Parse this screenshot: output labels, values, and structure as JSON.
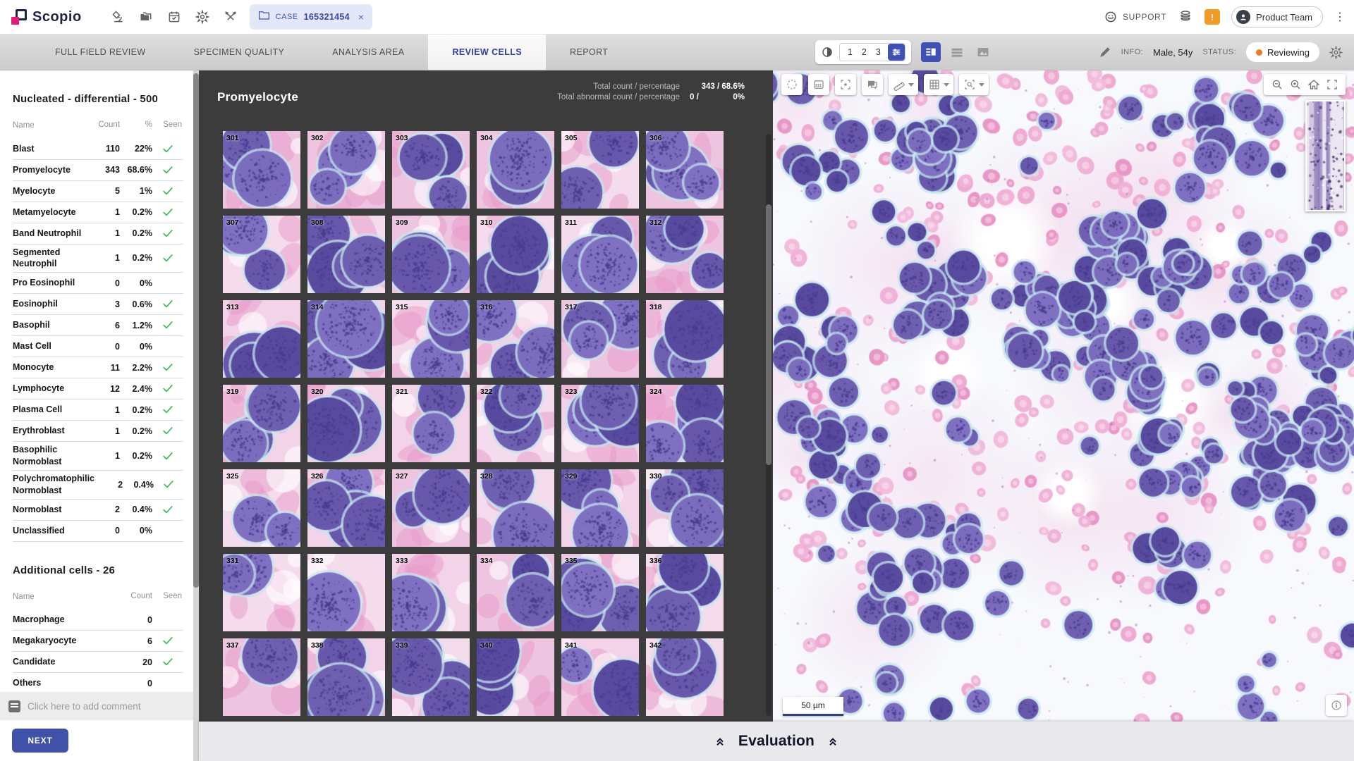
{
  "topbar": {
    "brand": "Scopio",
    "action_icons": [
      "microscope",
      "folders",
      "calendar",
      "settings",
      "tools"
    ],
    "case_tab": {
      "label": "CASE",
      "number": "165321454",
      "close": "×"
    },
    "support_label": "SUPPORT",
    "right_icons": [
      "headset",
      "database",
      "battery-alert"
    ],
    "user_pill": "Product Team"
  },
  "tabs": [
    {
      "label": "FULL FIELD REVIEW",
      "active": false
    },
    {
      "label": "SPECIMEN QUALITY",
      "active": false
    },
    {
      "label": "ANALYSIS AREA",
      "active": false
    },
    {
      "label": "REVIEW CELLS",
      "active": true
    },
    {
      "label": "REPORT",
      "active": false
    }
  ],
  "controls": {
    "pages": [
      "1",
      "2",
      "3"
    ],
    "view_modes": [
      "split-view",
      "list-view",
      "image-view"
    ],
    "active_view": "split-view",
    "info_label": "INFO:",
    "info_value": "Male, 54y",
    "status_label": "STATUS:",
    "status_value": "Reviewing",
    "status_color": "#f57922"
  },
  "sidebar": {
    "nucleated": {
      "title": "Nucleated - differential - 500",
      "columns": [
        "Name",
        "Count",
        "%",
        "Seen"
      ],
      "rows": [
        {
          "name": "Blast",
          "count": "110",
          "pct": "22%",
          "seen": true
        },
        {
          "name": "Promyelocyte",
          "count": "343",
          "pct": "68.6%",
          "seen": true
        },
        {
          "name": "Myelocyte",
          "count": "5",
          "pct": "1%",
          "seen": true
        },
        {
          "name": "Metamyelocyte",
          "count": "1",
          "pct": "0.2%",
          "seen": true
        },
        {
          "name": "Band Neutrophil",
          "count": "1",
          "pct": "0.2%",
          "seen": true
        },
        {
          "name": "Segmented Neutrophil",
          "count": "1",
          "pct": "0.2%",
          "seen": true
        },
        {
          "name": "Pro Eosinophil",
          "count": "0",
          "pct": "0%",
          "seen": false
        },
        {
          "name": "Eosinophil",
          "count": "3",
          "pct": "0.6%",
          "seen": true
        },
        {
          "name": "Basophil",
          "count": "6",
          "pct": "1.2%",
          "seen": true
        },
        {
          "name": "Mast Cell",
          "count": "0",
          "pct": "0%",
          "seen": false
        },
        {
          "name": "Monocyte",
          "count": "11",
          "pct": "2.2%",
          "seen": true
        },
        {
          "name": "Lymphocyte",
          "count": "12",
          "pct": "2.4%",
          "seen": true
        },
        {
          "name": "Plasma Cell",
          "count": "1",
          "pct": "0.2%",
          "seen": true
        },
        {
          "name": "Erythroblast",
          "count": "1",
          "pct": "0.2%",
          "seen": true
        },
        {
          "name": "Basophilic Normoblast",
          "count": "1",
          "pct": "0.2%",
          "seen": true
        },
        {
          "name": "Polychromatophilic Normoblast",
          "count": "2",
          "pct": "0.4%",
          "seen": true
        },
        {
          "name": "Normoblast",
          "count": "2",
          "pct": "0.4%",
          "seen": true
        },
        {
          "name": "Unclassified",
          "count": "0",
          "pct": "0%",
          "seen": false
        }
      ]
    },
    "additional": {
      "title": "Additional cells - 26",
      "columns": [
        "Name",
        "Count",
        "Seen"
      ],
      "rows": [
        {
          "name": "Macrophage",
          "count": "0",
          "seen": false
        },
        {
          "name": "Megakaryocyte",
          "count": "6",
          "seen": true
        },
        {
          "name": "Candidate",
          "count": "20",
          "seen": true
        },
        {
          "name": "Others",
          "count": "0",
          "seen": false
        }
      ]
    },
    "comment_placeholder": "Click here to add comment",
    "next_label": "NEXT",
    "check_color": "#3cb95d"
  },
  "cell_panel": {
    "title": "Promyelocyte",
    "total_count_label": "Total count  /  percentage",
    "total_count_value": "343 / 68.6%",
    "abnormal_label": "Total abnormal count  /  percentage",
    "abnormal_value": "0 /",
    "abnormal_pct": "0%",
    "tiles": [
      301,
      302,
      303,
      304,
      305,
      306,
      307,
      308,
      309,
      310,
      311,
      312,
      313,
      314,
      315,
      316,
      317,
      318,
      319,
      320,
      321,
      322,
      323,
      324,
      325,
      326,
      327,
      328,
      329,
      330,
      331,
      332,
      333,
      334,
      335,
      336,
      337,
      338,
      339,
      340,
      341,
      342
    ]
  },
  "viewer": {
    "tool_icons": [
      "lasso-select",
      "counting-grid",
      "focus-target",
      "comments",
      "ruler",
      "overlay-grid",
      "region-zoom"
    ],
    "zoom_icons": [
      "zoom-out",
      "zoom-in",
      "home",
      "fullscreen"
    ],
    "scale_label": "50 µm",
    "info_icon": "info"
  },
  "bottom_bar": {
    "label": "Evaluation"
  }
}
